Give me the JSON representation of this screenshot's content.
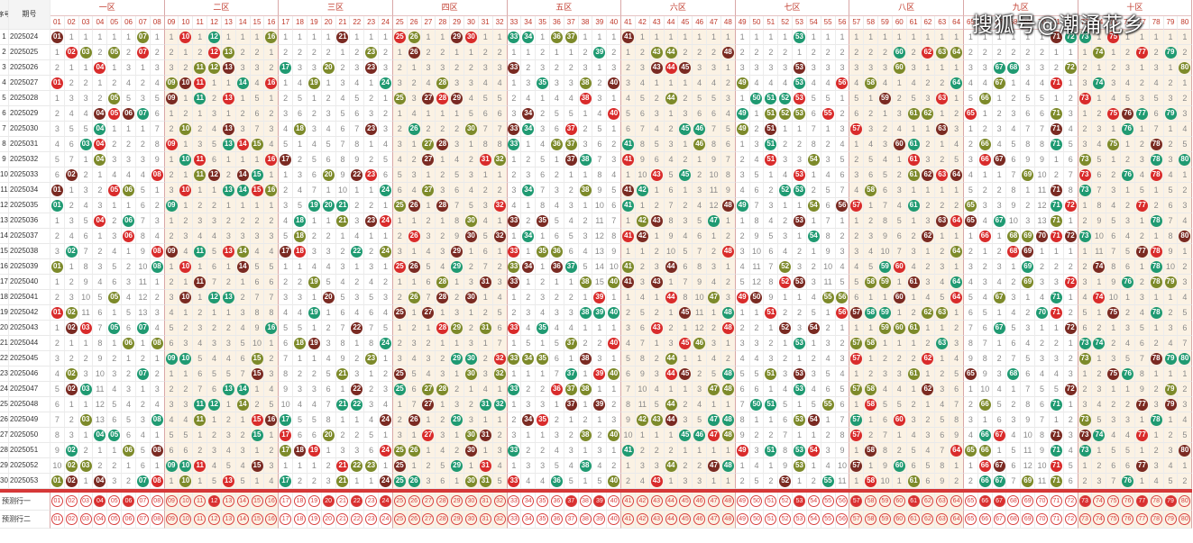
{
  "header": {
    "seq_label": "序号",
    "period_label": "期号",
    "zones": [
      "一区",
      "二区",
      "三区",
      "四区",
      "五区",
      "六区",
      "七区",
      "八区",
      "九区",
      "十区"
    ]
  },
  "watermark": "搜狐号@潮涌花乡",
  "colors": {
    "red_ball": "#d92b2b",
    "green_ball": "#1f9a72",
    "olive_ball": "#7d8a2a",
    "brown_ball": "#7a2a22",
    "gray_bar": "#a9a9a9",
    "violet_bar": "#9d9dd6",
    "zone_tint": "#fbf2e4"
  },
  "rows": [
    {
      "seq": "1",
      "period": "2025024",
      "draws": [
        1,
        7,
        10,
        12,
        16,
        21,
        25,
        26,
        29,
        30,
        33,
        34,
        36,
        37,
        41,
        53,
        71,
        72,
        73,
        75
      ],
      "gray": [],
      "violet": []
    },
    {
      "seq": "2",
      "period": "2025025",
      "draws": [
        2,
        3,
        5,
        7,
        12,
        13,
        23,
        26,
        39,
        43,
        44,
        48,
        60,
        62,
        63,
        64,
        74,
        77,
        79
      ],
      "gray": [],
      "violet": []
    },
    {
      "seq": "3",
      "period": "2025026",
      "draws": [
        4,
        11,
        12,
        13,
        17,
        20,
        23,
        33,
        43,
        44,
        45,
        53,
        60,
        67,
        68,
        72,
        80
      ],
      "gray": [],
      "violet": []
    },
    {
      "seq": "4",
      "period": "2025027",
      "draws": [
        1,
        9,
        10,
        11,
        14,
        16,
        19,
        24,
        28,
        35,
        38,
        40,
        49,
        53,
        56,
        58,
        64,
        67,
        71,
        74
      ],
      "gray": [],
      "violet": []
    },
    {
      "seq": "5",
      "period": "2025028",
      "draws": [
        5,
        9,
        11,
        13,
        25,
        27,
        28,
        29,
        38,
        44,
        50,
        51,
        52,
        53,
        59,
        63,
        66,
        73
      ],
      "gray": [],
      "violet": []
    },
    {
      "seq": "6",
      "period": "2025029",
      "draws": [
        4,
        5,
        6,
        7,
        34,
        40,
        49,
        51,
        52,
        53,
        55,
        61,
        62,
        65,
        71,
        75,
        76,
        77,
        79
      ],
      "gray": [],
      "violet": []
    },
    {
      "seq": "7",
      "period": "2025030",
      "draws": [
        4,
        10,
        13,
        18,
        23,
        26,
        30,
        33,
        34,
        37,
        45,
        46,
        49,
        51,
        57,
        63,
        71,
        76
      ],
      "gray": [],
      "violet": []
    },
    {
      "seq": "8",
      "period": "2025031",
      "draws": [
        3,
        4,
        9,
        13,
        14,
        15,
        27,
        28,
        33,
        36,
        37,
        41,
        46,
        51,
        60,
        61,
        66,
        71,
        75,
        78
      ],
      "gray": [],
      "violet": []
    },
    {
      "seq": "9",
      "period": "2025032",
      "draws": [
        4,
        10,
        11,
        16,
        17,
        27,
        31,
        32,
        37,
        38,
        41,
        51,
        54,
        61,
        66,
        67,
        73,
        78,
        80
      ],
      "gray": [],
      "violet": []
    },
    {
      "seq": "10",
      "period": "2025033",
      "draws": [
        2,
        8,
        11,
        12,
        14,
        15,
        20,
        22,
        23,
        43,
        45,
        53,
        61,
        62,
        63,
        64,
        69,
        73,
        76,
        78
      ],
      "gray": [],
      "violet": []
    },
    {
      "seq": "11",
      "period": "2025034",
      "draws": [
        1,
        5,
        6,
        10,
        13,
        14,
        15,
        16,
        24,
        27,
        34,
        38,
        41,
        42,
        52,
        53,
        58,
        71,
        73
      ],
      "gray": [],
      "violet": []
    },
    {
      "seq": "12",
      "period": "2025035",
      "draws": [
        1,
        9,
        19,
        20,
        21,
        25,
        26,
        28,
        32,
        41,
        48,
        49,
        54,
        56,
        57,
        61,
        65,
        71,
        72,
        77
      ],
      "gray": [],
      "violet": []
    },
    {
      "seq": "13",
      "period": "2025036",
      "draws": [
        4,
        6,
        18,
        21,
        23,
        24,
        30,
        33,
        35,
        42,
        43,
        47,
        53,
        63,
        64,
        65,
        67,
        71,
        78
      ],
      "gray": [],
      "violet": []
    },
    {
      "seq": "14",
      "period": "2025037",
      "draws": [
        6,
        18,
        26,
        30,
        32,
        34,
        41,
        42,
        54,
        62,
        66,
        68,
        69,
        70,
        71,
        72,
        73,
        80
      ],
      "gray": [],
      "violet": []
    },
    {
      "seq": "15",
      "period": "2025038",
      "draws": [
        2,
        8,
        9,
        11,
        13,
        14,
        17,
        18,
        22,
        24,
        29,
        33,
        35,
        36,
        48,
        64,
        68,
        69,
        77,
        78
      ],
      "gray": [],
      "violet": []
    },
    {
      "seq": "16",
      "period": "2025039",
      "draws": [
        1,
        8,
        10,
        14,
        25,
        26,
        29,
        33,
        34,
        36,
        37,
        41,
        44,
        52,
        59,
        60,
        69,
        74,
        78
      ],
      "gray": [],
      "violet": []
    },
    {
      "seq": "17",
      "period": "2025040",
      "draws": [
        11,
        19,
        28,
        31,
        33,
        38,
        40,
        41,
        43,
        52,
        53,
        58,
        59,
        61,
        64,
        69,
        72,
        76,
        78,
        79
      ],
      "gray": [],
      "violet": []
    },
    {
      "seq": "18",
      "period": "2025041",
      "draws": [
        5,
        10,
        12,
        13,
        20,
        26,
        28,
        30,
        39,
        44,
        47,
        49,
        50,
        55,
        56,
        60,
        64,
        67,
        71,
        74
      ],
      "gray": [],
      "violet": []
    },
    {
      "seq": "19",
      "period": "2025042",
      "draws": [
        1,
        2,
        19,
        25,
        27,
        38,
        39,
        40,
        45,
        48,
        51,
        56,
        57,
        58,
        59,
        62,
        63,
        70,
        71,
        75,
        78
      ],
      "gray": [],
      "violet": []
    },
    {
      "seq": "20",
      "period": "2025043",
      "draws": [
        2,
        3,
        5,
        7,
        16,
        22,
        28,
        29,
        31,
        33,
        35,
        43,
        48,
        52,
        54,
        59,
        60,
        61,
        67,
        72
      ],
      "gray": [],
      "violet": []
    },
    {
      "seq": "21",
      "period": "2025044",
      "draws": [
        6,
        8,
        18,
        19,
        24,
        37,
        40,
        45,
        46,
        53,
        57,
        58,
        63,
        73,
        74
      ],
      "gray": [],
      "violet": []
    },
    {
      "seq": "22",
      "period": "2025045",
      "draws": [
        9,
        10,
        15,
        23,
        29,
        30,
        32,
        33,
        34,
        35,
        38,
        44,
        57,
        62,
        73,
        78,
        79,
        80
      ],
      "gray": [],
      "violet": []
    },
    {
      "seq": "23",
      "period": "2025046",
      "draws": [
        2,
        7,
        15,
        21,
        25,
        30,
        32,
        37,
        39,
        40,
        44,
        45,
        48,
        51,
        53,
        61,
        65,
        68,
        75,
        76
      ],
      "gray": [],
      "violet": []
    },
    {
      "seq": "24",
      "period": "2025047",
      "draws": [
        2,
        3,
        13,
        14,
        22,
        25,
        27,
        28,
        33,
        36,
        37,
        38,
        47,
        48,
        53,
        57,
        58,
        62,
        72,
        79
      ],
      "gray": [],
      "violet": []
    },
    {
      "seq": "25",
      "period": "2025048",
      "draws": [
        11,
        12,
        14,
        21,
        22,
        27,
        31,
        32,
        37,
        39,
        44,
        50,
        51,
        55,
        58,
        66,
        71,
        77,
        79
      ],
      "gray": [],
      "violet": []
    },
    {
      "seq": "26",
      "period": "2025049",
      "draws": [
        3,
        8,
        11,
        15,
        16,
        17,
        24,
        26,
        29,
        34,
        35,
        42,
        43,
        44,
        47,
        48,
        53,
        54,
        57,
        60,
        73,
        78
      ],
      "gray": [],
      "violet": []
    },
    {
      "seq": "27",
      "period": "2025050",
      "draws": [
        4,
        5,
        15,
        17,
        20,
        27,
        30,
        31,
        38,
        40,
        45,
        46,
        47,
        48,
        57,
        66,
        67,
        71,
        73,
        74,
        77
      ],
      "gray": [],
      "violet": []
    },
    {
      "seq": "28",
      "period": "2025051",
      "draws": [
        2,
        6,
        8,
        17,
        18,
        19,
        24,
        25,
        26,
        30,
        33,
        41,
        49,
        51,
        53,
        54,
        58,
        64,
        65,
        66,
        71,
        73,
        80
      ],
      "gray": [],
      "violet": []
    },
    {
      "seq": "29",
      "period": "2025052",
      "draws": [
        2,
        3,
        9,
        10,
        11,
        15,
        21,
        22,
        23,
        25,
        29,
        31,
        38,
        44,
        47,
        48,
        53,
        57,
        60,
        66,
        67,
        71,
        77
      ],
      "gray": [],
      "violet": []
    },
    {
      "seq": "30",
      "period": "2025053",
      "draws": [
        1,
        2,
        4,
        7,
        8,
        10,
        13,
        17,
        21,
        24,
        25,
        26,
        30,
        31,
        33,
        36,
        40,
        43,
        52,
        55,
        58,
        61,
        66,
        67,
        69,
        71,
        76
      ],
      "gray": [],
      "violet": []
    }
  ],
  "predict": {
    "row1_label": "预测行一",
    "row2_label": "预测行二",
    "row1_highlight": [
      4,
      6,
      12,
      20,
      22,
      24,
      37,
      39,
      53,
      57,
      61,
      66,
      67,
      73,
      77,
      79
    ],
    "row2_highlight": []
  }
}
